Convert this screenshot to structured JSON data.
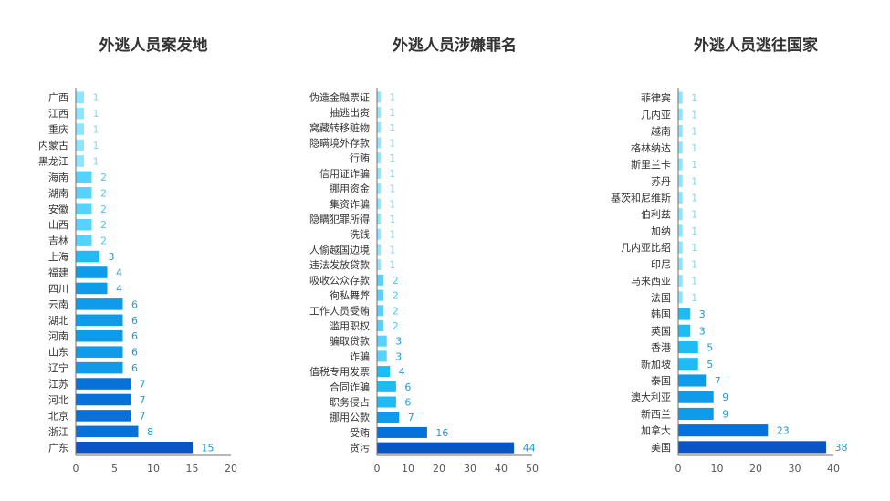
{
  "colors": {
    "scale": [
      "#8BE6FF",
      "#55D2FF",
      "#1FBBF5",
      "#0E9BEA",
      "#0671D8",
      "#0A55C6"
    ],
    "axis_line": "#6f6f6f",
    "tick_text": "#555555",
    "category_text": "#333333",
    "title_text": "#333333"
  },
  "chart_data": [
    {
      "type": "bar",
      "orientation": "horizontal",
      "title": "外逃人员案发地",
      "categories": [
        "广西",
        "江西",
        "重庆",
        "内蒙古",
        "黑龙江",
        "海南",
        "湖南",
        "安徽",
        "山西",
        "吉林",
        "上海",
        "福建",
        "四川",
        "云南",
        "湖北",
        "河南",
        "山东",
        "辽宁",
        "江苏",
        "河北",
        "北京",
        "浙江",
        "广东"
      ],
      "values": [
        1,
        1,
        1,
        1,
        1,
        2,
        2,
        2,
        2,
        2,
        3,
        4,
        4,
        6,
        6,
        6,
        6,
        6,
        7,
        7,
        7,
        8,
        15
      ],
      "xlim": [
        0,
        20
      ],
      "xticks": [
        "0",
        "5",
        "10",
        "15",
        "20"
      ],
      "grid": false,
      "legend": "none"
    },
    {
      "type": "bar",
      "orientation": "horizontal",
      "title": "外逃人员涉嫌罪名",
      "categories": [
        "伪造金融票证",
        "抽逃出资",
        "窝藏转移赃物",
        "隐瞒境外存款",
        "行贿",
        "信用证诈骗",
        "挪用资金",
        "集资诈骗",
        "隐瞒犯罪所得",
        "洗钱",
        "人偷越国边境",
        "违法发放贷款",
        "吸收公众存款",
        "徇私舞弊",
        "工作人员受贿",
        "滥用职权",
        "骗取贷款",
        "诈骗",
        "值税专用发票",
        "合同诈骗",
        "职务侵占",
        "挪用公款",
        "受贿",
        "贪污"
      ],
      "values": [
        1,
        1,
        1,
        1,
        1,
        1,
        1,
        1,
        1,
        1,
        1,
        1,
        2,
        2,
        2,
        2,
        3,
        3,
        4,
        6,
        6,
        7,
        16,
        44
      ],
      "xlim": [
        0,
        50
      ],
      "xticks": [
        "0",
        "10",
        "20",
        "30",
        "40",
        "50"
      ],
      "grid": false,
      "legend": "none"
    },
    {
      "type": "bar",
      "orientation": "horizontal",
      "title": "外逃人员逃往国家",
      "categories": [
        "菲律宾",
        "几内亚",
        "越南",
        "格林纳达",
        "斯里兰卡",
        "苏丹",
        "基茨和尼维斯",
        "伯利兹",
        "加纳",
        "几内亚比绍",
        "印尼",
        "马来西亚",
        "法国",
        "韩国",
        "英国",
        "香港",
        "新加坡",
        "泰国",
        "澳大利亚",
        "新西兰",
        "加拿大",
        "美国"
      ],
      "values": [
        1,
        1,
        1,
        1,
        1,
        1,
        1,
        1,
        1,
        1,
        1,
        1,
        1,
        3,
        3,
        5,
        5,
        7,
        9,
        9,
        23,
        38
      ],
      "xlim": [
        0,
        40
      ],
      "xticks": [
        "0",
        "10",
        "20",
        "30",
        "40"
      ],
      "grid": false,
      "legend": "none"
    }
  ]
}
